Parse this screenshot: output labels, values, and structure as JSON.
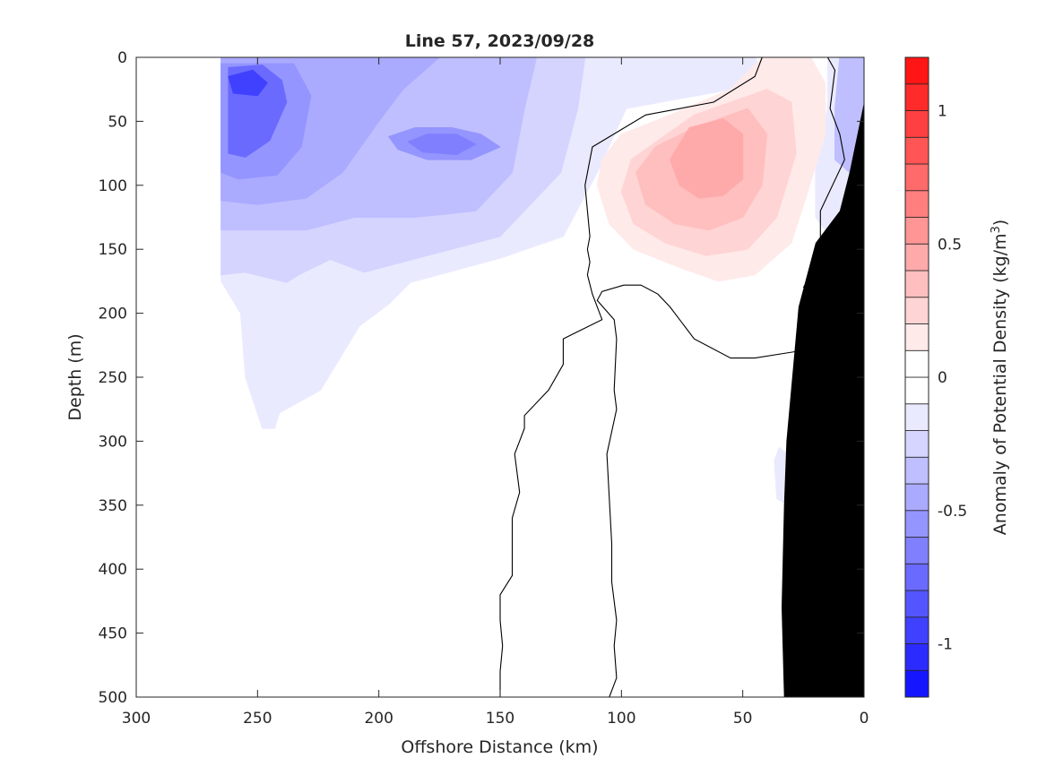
{
  "chart_data": {
    "type": "heatmap",
    "title": "Line 57, 2023/09/28",
    "xlabel": "Offshore Distance (km)",
    "ylabel": "Depth (m)",
    "xlim": [
      300,
      0
    ],
    "ylim": [
      0,
      500
    ],
    "x_ticks": [
      300,
      250,
      200,
      150,
      100,
      50,
      0
    ],
    "y_ticks": [
      0,
      50,
      100,
      150,
      200,
      250,
      300,
      350,
      400,
      450,
      500
    ],
    "colorbar": {
      "label_main": "Anomaly of Potential Density (kg/m",
      "label_sup": "3",
      "label_close": ")",
      "range": [
        -1.2,
        1.2
      ],
      "step": 0.1,
      "ticks": [
        -1,
        -0.5,
        0,
        0.5,
        1
      ],
      "tick_labels": [
        "-1",
        "-0.5",
        "0",
        "0.5",
        "1"
      ]
    },
    "anomaly_regions": [
      {
        "name": "negative-offshore-shelf",
        "level": -0.1,
        "points": [
          [
            265,
            0
          ],
          [
            45,
            0
          ],
          [
            40,
            20
          ],
          [
            98,
            40
          ],
          [
            110,
            90
          ],
          [
            124,
            140
          ],
          [
            150,
            157
          ],
          [
            187,
            176
          ],
          [
            196,
            193
          ],
          [
            208,
            210
          ],
          [
            224,
            260
          ],
          [
            241,
            278
          ],
          [
            243,
            290
          ],
          [
            248,
            290
          ],
          [
            255,
            250
          ],
          [
            257,
            200
          ],
          [
            265,
            175
          ]
        ]
      },
      {
        "name": "negative-offshore",
        "level": -0.2,
        "points": [
          [
            265,
            0
          ],
          [
            115,
            0
          ],
          [
            118,
            40
          ],
          [
            125,
            90
          ],
          [
            150,
            140
          ],
          [
            180,
            155
          ],
          [
            206,
            168
          ],
          [
            220,
            158
          ],
          [
            233,
            170
          ],
          [
            238,
            176
          ],
          [
            255,
            168
          ],
          [
            265,
            170
          ]
        ]
      },
      {
        "name": "negative-offshore",
        "level": -0.3,
        "points": [
          [
            265,
            0
          ],
          [
            135,
            0
          ],
          [
            140,
            40
          ],
          [
            145,
            90
          ],
          [
            160,
            120
          ],
          [
            185,
            125
          ],
          [
            210,
            125
          ],
          [
            230,
            135
          ],
          [
            255,
            135
          ],
          [
            265,
            135
          ]
        ]
      },
      {
        "name": "negative-offshore",
        "level": -0.4,
        "points": [
          [
            265,
            0
          ],
          [
            175,
            0
          ],
          [
            190,
            25
          ],
          [
            200,
            50
          ],
          [
            215,
            90
          ],
          [
            230,
            110
          ],
          [
            250,
            115
          ],
          [
            265,
            112
          ]
        ]
      },
      {
        "name": "negative-core-west",
        "level": -0.5,
        "points": [
          [
            265,
            5
          ],
          [
            235,
            5
          ],
          [
            228,
            30
          ],
          [
            232,
            70
          ],
          [
            242,
            92
          ],
          [
            258,
            95
          ],
          [
            265,
            90
          ]
        ]
      },
      {
        "name": "negative-core-mid",
        "level": -0.5,
        "points": [
          [
            185,
            55
          ],
          [
            170,
            55
          ],
          [
            158,
            60
          ],
          [
            150,
            70
          ],
          [
            162,
            80
          ],
          [
            180,
            80
          ],
          [
            192,
            72
          ],
          [
            196,
            62
          ]
        ]
      },
      {
        "name": "negative-core-mid",
        "level": -0.6,
        "points": [
          [
            180,
            60
          ],
          [
            168,
            60
          ],
          [
            160,
            68
          ],
          [
            168,
            76
          ],
          [
            182,
            74
          ],
          [
            188,
            66
          ]
        ]
      },
      {
        "name": "negative-core-west",
        "level": -0.7,
        "points": [
          [
            262,
            8
          ],
          [
            248,
            6
          ],
          [
            240,
            18
          ],
          [
            238,
            35
          ],
          [
            245,
            65
          ],
          [
            255,
            78
          ],
          [
            262,
            75
          ]
        ]
      },
      {
        "name": "negative-core-west",
        "level": -0.9,
        "points": [
          [
            262,
            15
          ],
          [
            252,
            10
          ],
          [
            246,
            20
          ],
          [
            250,
            30
          ],
          [
            260,
            28
          ]
        ]
      },
      {
        "name": "negative-nearshore",
        "level": -0.1,
        "points": [
          [
            15,
            0
          ],
          [
            0,
            0
          ],
          [
            0,
            35
          ],
          [
            4,
            95
          ],
          [
            14,
            140
          ],
          [
            20,
            125
          ],
          [
            20,
            80
          ],
          [
            15,
            40
          ]
        ]
      },
      {
        "name": "negative-nearshore",
        "level": -0.3,
        "points": [
          [
            10,
            0
          ],
          [
            0,
            0
          ],
          [
            0,
            40
          ],
          [
            6,
            90
          ],
          [
            12,
            80
          ],
          [
            12,
            40
          ]
        ]
      },
      {
        "name": "negative-deep-patch",
        "level": -0.1,
        "points": [
          [
            35,
            305
          ],
          [
            30,
            312
          ],
          [
            27,
            340
          ],
          [
            31,
            350
          ],
          [
            36,
            345
          ],
          [
            37,
            315
          ]
        ]
      },
      {
        "name": "positive-slope",
        "level": 0.1,
        "points": [
          [
            42,
            0
          ],
          [
            22,
            0
          ],
          [
            16,
            20
          ],
          [
            16,
            60
          ],
          [
            24,
            110
          ],
          [
            30,
            145
          ],
          [
            45,
            170
          ],
          [
            60,
            175
          ],
          [
            75,
            165
          ],
          [
            95,
            150
          ],
          [
            105,
            130
          ],
          [
            110,
            100
          ],
          [
            108,
            80
          ],
          [
            100,
            60
          ],
          [
            80,
            45
          ],
          [
            55,
            25
          ]
        ]
      },
      {
        "name": "positive-slope",
        "level": 0.2,
        "points": [
          [
            40,
            25
          ],
          [
            30,
            35
          ],
          [
            28,
            75
          ],
          [
            36,
            125
          ],
          [
            48,
            150
          ],
          [
            65,
            155
          ],
          [
            82,
            145
          ],
          [
            95,
            130
          ],
          [
            100,
            105
          ],
          [
            96,
            80
          ],
          [
            85,
            65
          ],
          [
            70,
            45
          ]
        ]
      },
      {
        "name": "positive-slope",
        "level": 0.3,
        "points": [
          [
            48,
            40
          ],
          [
            40,
            60
          ],
          [
            42,
            100
          ],
          [
            50,
            125
          ],
          [
            64,
            135
          ],
          [
            78,
            130
          ],
          [
            90,
            115
          ],
          [
            94,
            90
          ],
          [
            86,
            70
          ],
          [
            70,
            55
          ]
        ]
      },
      {
        "name": "positive-core",
        "level": 0.4,
        "points": [
          [
            58,
            48
          ],
          [
            50,
            60
          ],
          [
            50,
            95
          ],
          [
            58,
            108
          ],
          [
            68,
            110
          ],
          [
            76,
            100
          ],
          [
            80,
            80
          ],
          [
            72,
            55
          ]
        ]
      }
    ],
    "zero_contours": [
      [
        [
          42,
          0
        ],
        [
          45,
          15
        ],
        [
          62,
          35
        ],
        [
          90,
          45
        ],
        [
          112,
          70
        ],
        [
          115,
          100
        ],
        [
          113,
          140
        ],
        [
          114,
          150
        ],
        [
          113,
          160
        ],
        [
          114,
          170
        ],
        [
          112,
          185
        ],
        [
          108,
          205
        ],
        [
          124,
          220
        ],
        [
          124,
          240
        ],
        [
          130,
          260
        ],
        [
          140,
          280
        ],
        [
          140,
          290
        ],
        [
          144,
          310
        ],
        [
          142,
          340
        ],
        [
          145,
          360
        ],
        [
          145,
          405
        ],
        [
          150,
          420
        ],
        [
          150,
          440
        ],
        [
          149,
          460
        ],
        [
          150,
          480
        ],
        [
          150,
          500
        ]
      ],
      [
        [
          15,
          0
        ],
        [
          12,
          10
        ],
        [
          14,
          40
        ],
        [
          10,
          60
        ],
        [
          8,
          80
        ],
        [
          18,
          120
        ],
        [
          18,
          140
        ],
        [
          14,
          150
        ],
        [
          22,
          170
        ],
        [
          25,
          180
        ]
      ],
      [
        [
          99,
          178
        ],
        [
          92,
          178
        ],
        [
          85,
          185
        ],
        [
          80,
          195
        ],
        [
          70,
          220
        ],
        [
          55,
          235
        ],
        [
          45,
          235
        ],
        [
          25,
          229
        ]
      ],
      [
        [
          99,
          178
        ],
        [
          108,
          183
        ],
        [
          110,
          190
        ],
        [
          103,
          205
        ],
        [
          102,
          220
        ],
        [
          103,
          260
        ],
        [
          102,
          275
        ],
        [
          106,
          310
        ],
        [
          104,
          380
        ],
        [
          104,
          410
        ],
        [
          102,
          440
        ],
        [
          103,
          460
        ],
        [
          102,
          485
        ],
        [
          105,
          500
        ]
      ]
    ],
    "bathymetry": [
      [
        0,
        35
      ],
      [
        6,
        90
      ],
      [
        10,
        120
      ],
      [
        20,
        145
      ],
      [
        27,
        195
      ],
      [
        32,
        300
      ],
      [
        33,
        350
      ],
      [
        34,
        430
      ],
      [
        33,
        500
      ],
      [
        0,
        500
      ]
    ]
  }
}
